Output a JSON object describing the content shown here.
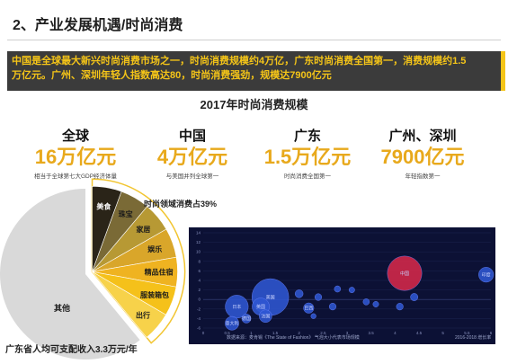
{
  "header": {
    "title": "2、产业发展机遇/时尚消费"
  },
  "banner": {
    "line1": "中国是全球最大新兴时尚消费市场之一，时尚消费规模约4万亿，广东时尚消费全国第一，消费规模约1.5",
    "line2": "万亿元。广州、深圳年轻人指数高达80，时尚消费强劲，规模达7900亿元"
  },
  "chart_title": "2017年时尚消费规模",
  "stats": [
    {
      "scope": "全球",
      "value": "16万亿元",
      "note": "相当于全球第七大GDP经济体量"
    },
    {
      "scope": "中国",
      "value": "4万亿元",
      "note": "与美国并列全球第一"
    },
    {
      "scope": "广东",
      "value": "1.5万亿元",
      "note": "时尚消费全国第一"
    },
    {
      "scope": "广州、深圳",
      "value": "7900亿元",
      "note": "年轻指数第一"
    }
  ],
  "pie": {
    "share_label": "时尚领域消费占39%",
    "share_fraction": 0.39,
    "rest_label": "其他",
    "caption": "广东省人均可支配收入3.3万元/年",
    "categories": [
      {
        "label": "美食",
        "color": "#2a2418"
      },
      {
        "label": "珠宝",
        "color": "#7a6a36"
      },
      {
        "label": "家居",
        "color": "#b79934"
      },
      {
        "label": "娱乐",
        "color": "#d9a62a"
      },
      {
        "label": "精品住宿",
        "color": "#efb321"
      },
      {
        "label": "服装箱包",
        "color": "#f5c11a"
      },
      {
        "label": "出行",
        "color": "#f7d24a"
      }
    ]
  },
  "bubble_chart": {
    "y_ticks": [
      "14",
      "12",
      "10",
      "8",
      "6",
      "4",
      "2",
      "0",
      "-2",
      "-4",
      "-6"
    ],
    "x_ticks": [
      "0",
      "0.5",
      "1",
      "1.5",
      "2",
      "2.5",
      "3",
      "3.5",
      "4",
      "4.5",
      "5",
      "5.5",
      "6"
    ],
    "footer": "数据来源：麦肯锡《The State of Fashion》 气泡大小代表市场规模",
    "corner_label": "2016-2018 增长率",
    "bubbles": [
      {
        "label": "美国",
        "x": 1.4,
        "y": 0.5,
        "r": 6.4
      },
      {
        "label": "日本",
        "x": 0.7,
        "y": -1.5,
        "r": 4.0
      },
      {
        "label": "英国",
        "x": 1.2,
        "y": -1.5,
        "r": 3.0
      },
      {
        "label": "中国",
        "x": 4.2,
        "y": 5.5,
        "r": 6.0
      },
      {
        "label": "印度",
        "x": 5.9,
        "y": 5.2,
        "r": 2.6
      },
      {
        "label": "法国",
        "x": 1.3,
        "y": -3.5,
        "r": 2.2
      },
      {
        "label": "意大利",
        "x": 0.6,
        "y": -5.0,
        "r": 2.4
      },
      {
        "label": "德国",
        "x": 0.9,
        "y": -4.0,
        "r": 1.6
      },
      {
        "label": "巴西",
        "x": 2.2,
        "y": -1.8,
        "r": 1.8
      },
      {
        "label": "",
        "x": 2.0,
        "y": 1.2,
        "r": 1.4
      },
      {
        "label": "",
        "x": 2.4,
        "y": 0.5,
        "r": 1.2
      },
      {
        "label": "",
        "x": 2.8,
        "y": 2.2,
        "r": 1.1
      },
      {
        "label": "",
        "x": 3.4,
        "y": -0.5,
        "r": 1.1
      },
      {
        "label": "",
        "x": 3.6,
        "y": -1.0,
        "r": 1.0
      },
      {
        "label": "",
        "x": 4.4,
        "y": 0.5,
        "r": 1.3
      },
      {
        "label": "",
        "x": 4.1,
        "y": -1.5,
        "r": 1.2
      },
      {
        "label": "",
        "x": 2.7,
        "y": -1.5,
        "r": 1.2
      },
      {
        "label": "",
        "x": 3.1,
        "y": 2.0,
        "r": 1.0
      },
      {
        "label": "",
        "x": 2.3,
        "y": -3.5,
        "r": 0.9
      }
    ],
    "colors": {
      "primary": "#2f56d3",
      "highlight": "#d6284a",
      "panel": "#0c1135",
      "label": "#c9d2ff"
    }
  },
  "colors": {
    "accent": "#e8a91c",
    "banner_text": "#f5c518",
    "banner_bg": "#3b3b3b",
    "pie_rest": "#d9d9d9"
  }
}
